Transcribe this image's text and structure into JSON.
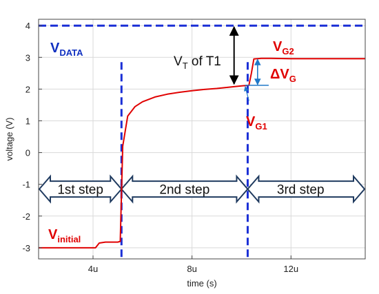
{
  "chart_data": {
    "type": "line",
    "title": "",
    "xlabel": "time (s)",
    "ylabel": "voltage (V)",
    "xlim": [
      1.8,
      15
    ],
    "ylim": [
      -3.35,
      4.2
    ],
    "x_ticks": [
      {
        "v": 4,
        "label": "4u"
      },
      {
        "v": 8,
        "label": "8u"
      },
      {
        "v": 12,
        "label": "12u"
      }
    ],
    "y_ticks": [
      {
        "v": -3,
        "label": "-3"
      },
      {
        "v": -2,
        "label": "-2"
      },
      {
        "v": -1,
        "label": "-1"
      },
      {
        "v": 0,
        "label": "0"
      },
      {
        "v": 1,
        "label": "1"
      },
      {
        "v": 2,
        "label": "2"
      },
      {
        "v": 3,
        "label": "3"
      },
      {
        "v": 4,
        "label": "4"
      }
    ],
    "grid": true,
    "series": [
      {
        "name": "",
        "color": "#e00000",
        "x": [
          1.8,
          4.1,
          4.25,
          4.5,
          5.0,
          5.1,
          5.12,
          5.2,
          5.4,
          5.7,
          6.0,
          6.5,
          7.0,
          7.5,
          8.0,
          8.5,
          9.0,
          9.5,
          10.0,
          10.3,
          10.4,
          10.5,
          10.8,
          11.2,
          12.0,
          13.0,
          14.0,
          15.0
        ],
        "y": [
          -3.0,
          -3.0,
          -2.85,
          -2.82,
          -2.82,
          -2.8,
          -2.2,
          0.2,
          1.15,
          1.45,
          1.6,
          1.75,
          1.84,
          1.9,
          1.95,
          1.99,
          2.02,
          2.06,
          2.1,
          2.12,
          2.5,
          2.95,
          2.97,
          2.97,
          2.96,
          2.96,
          2.96,
          2.96
        ]
      }
    ],
    "vdata_level": 4.0,
    "step_boundaries": [
      5.15,
      10.25
    ],
    "steps": [
      "1st step",
      "2nd step",
      "3rd step"
    ],
    "step_arrow_level": -1.15,
    "vt_arrow": {
      "x": 9.7,
      "from": 2.12,
      "to": 4.0
    },
    "delta_arrow": {
      "x": 10.65,
      "from": 2.12,
      "to": 2.96,
      "ref_line_x": [
        10.15,
        11.1
      ],
      "ref_level": 2.12
    },
    "pointer": {
      "from": [
        10.3,
        1.63
      ],
      "to": [
        10.15,
        2.08
      ]
    },
    "annotations": {
      "vdata": {
        "main": "V",
        "sub": "DATA"
      },
      "vinitial": {
        "main": "V",
        "sub": "initial"
      },
      "vg1": {
        "main": "V",
        "sub": "G1"
      },
      "vg2": {
        "main": "V",
        "sub": "G2"
      },
      "delta_vg": {
        "main": "ΔV",
        "sub": "G"
      },
      "vt": {
        "main": "V",
        "sub": "T",
        "tail": " of T1"
      }
    },
    "colors": {
      "trace": "#e00000",
      "dashed": "#1a2fd6",
      "arrow_fill": "#ffffff",
      "arrow_stroke": "#1f3a5f",
      "delta_arrow": "#1f78c8",
      "grid": "#d9d9d9"
    }
  }
}
